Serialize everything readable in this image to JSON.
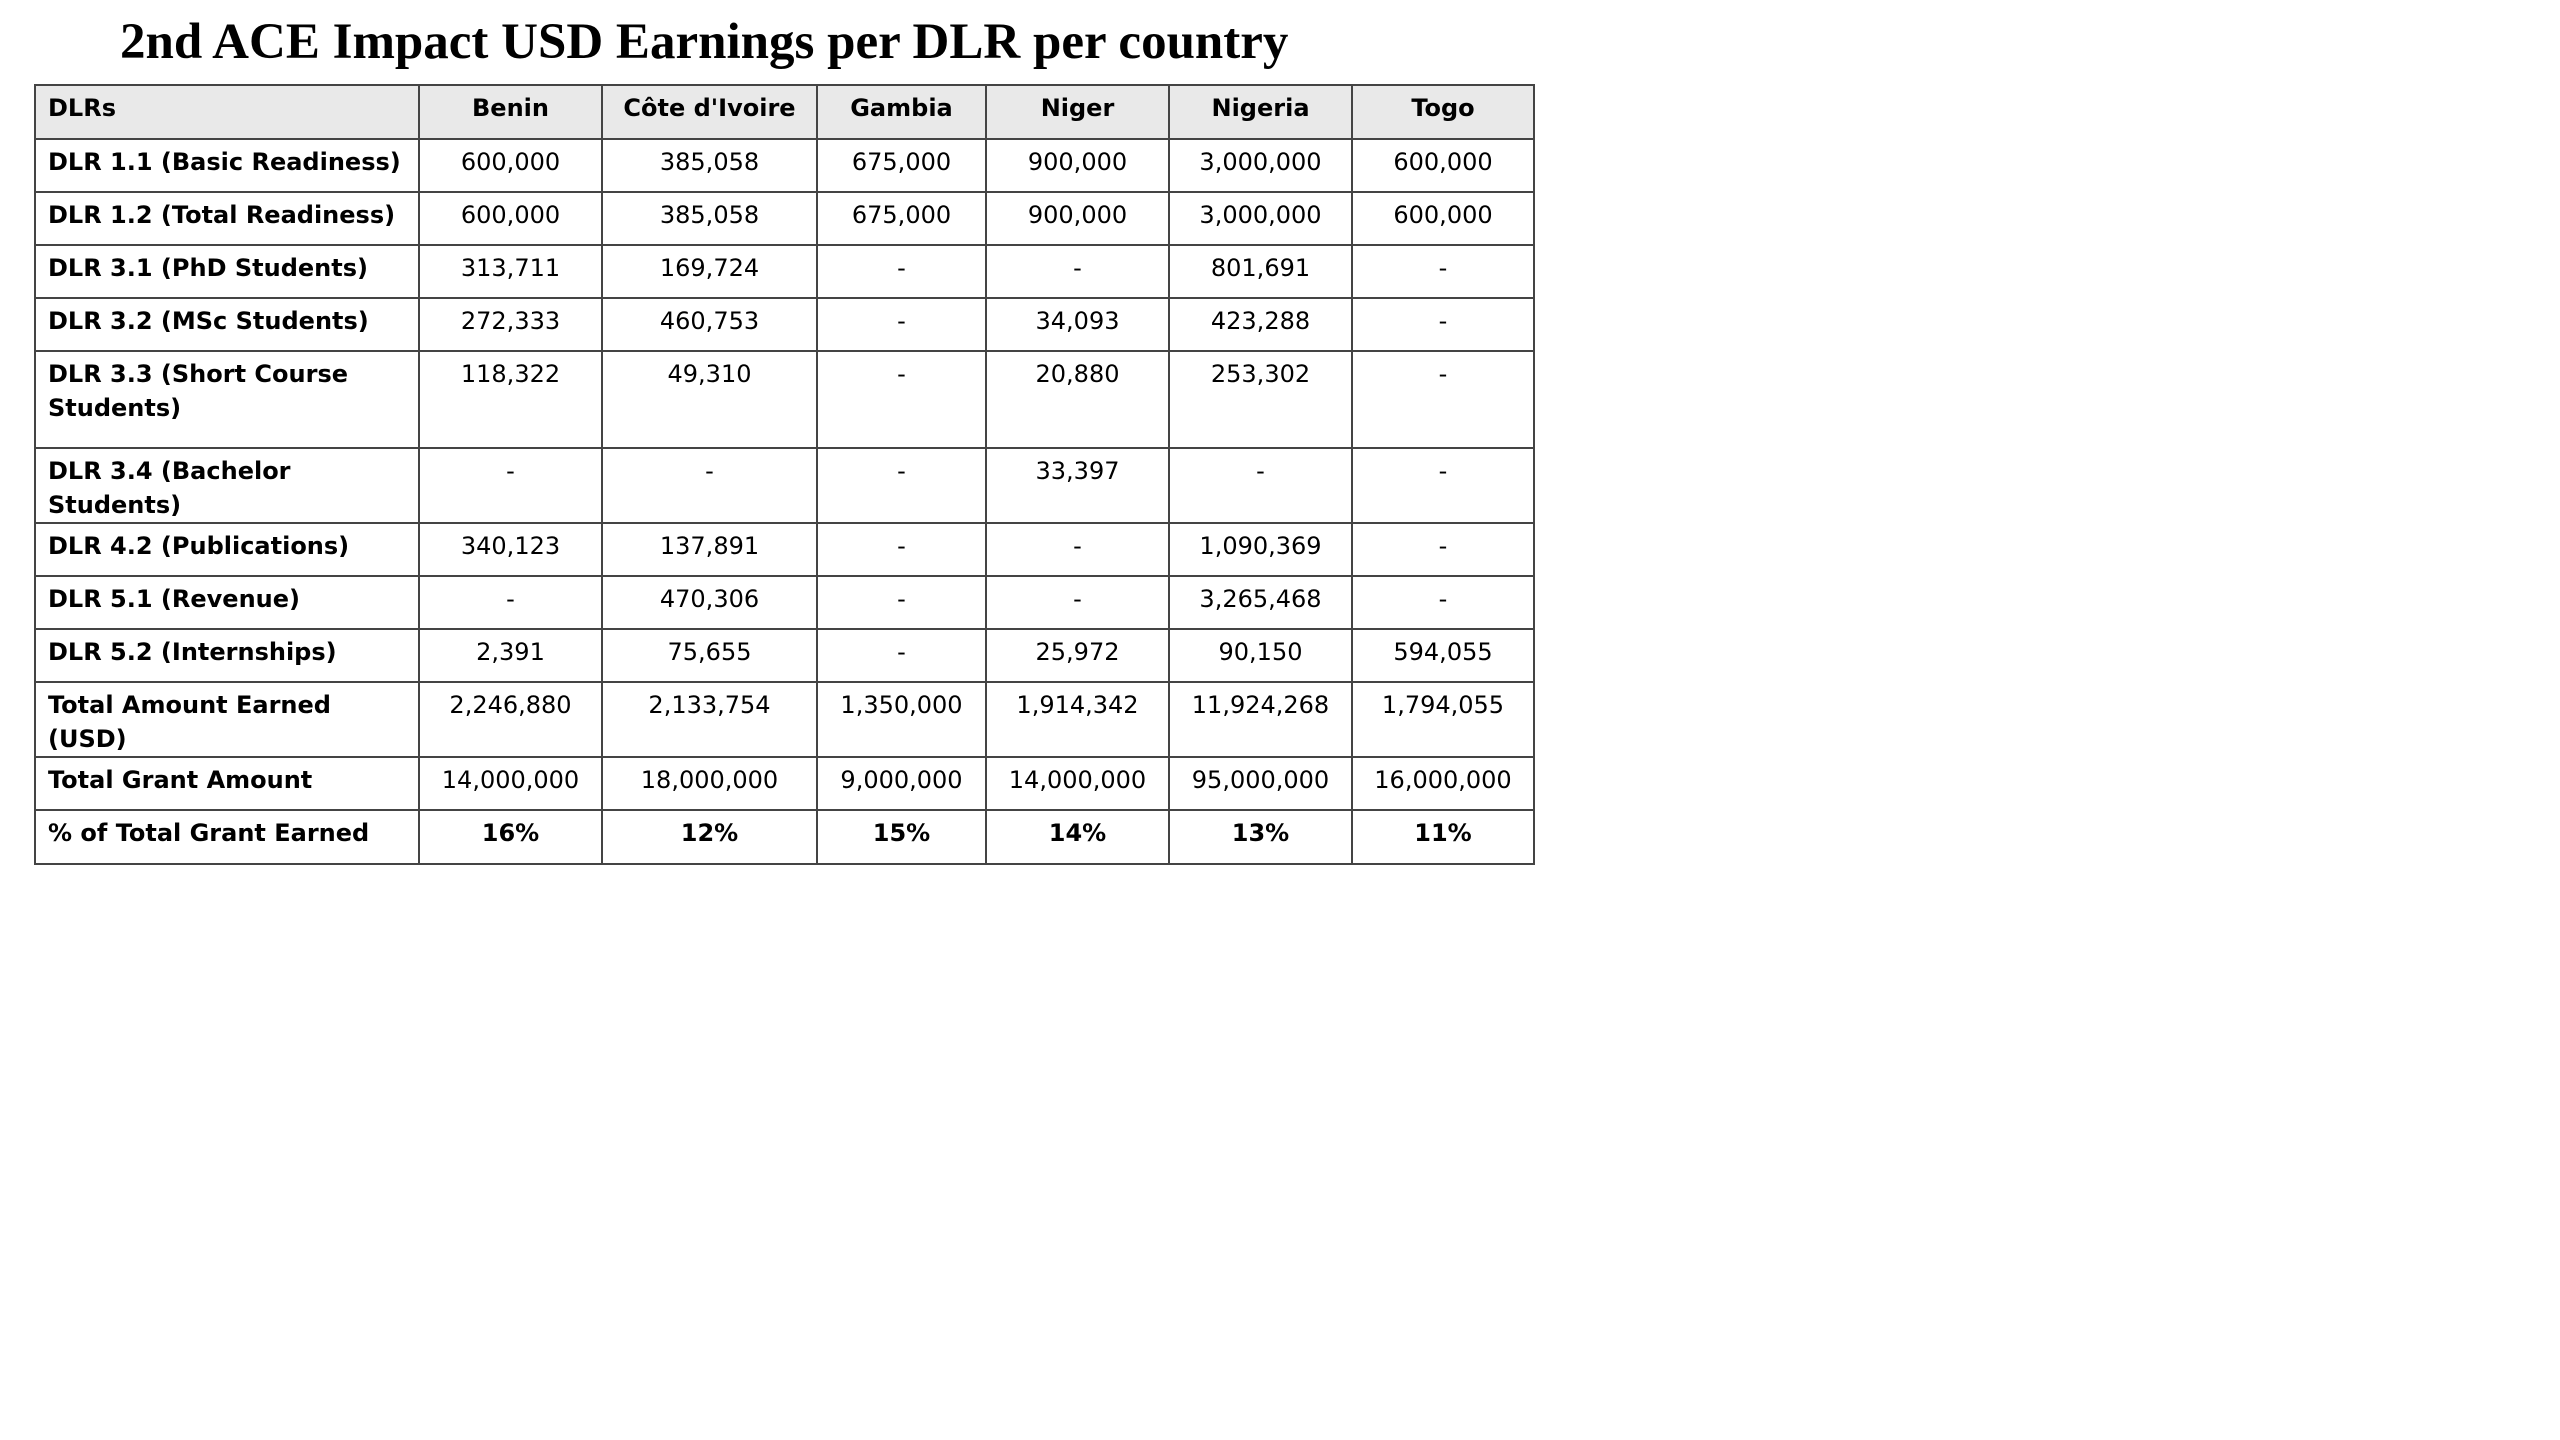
{
  "title": "2nd ACE Impact USD Earnings per DLR per country",
  "columns": [
    "DLRs",
    "Benin",
    "Côte d'Ivoire",
    "Gambia",
    "Niger",
    "Nigeria",
    "Togo"
  ],
  "rows": [
    {
      "label": "DLR 1.1 (Basic Readiness)",
      "values": [
        "600,000",
        "385,058",
        "675,000",
        "900,000",
        "3,000,000",
        "600,000"
      ]
    },
    {
      "label": "DLR 1.2 (Total Readiness)",
      "values": [
        "600,000",
        "385,058",
        "675,000",
        "900,000",
        "3,000,000",
        "600,000"
      ]
    },
    {
      "label": "DLR 3.1 (PhD Students)",
      "values": [
        "313,711",
        "169,724",
        "-",
        "-",
        "801,691",
        "-"
      ]
    },
    {
      "label": "DLR 3.2 (MSc Students)",
      "values": [
        "272,333",
        "460,753",
        "-",
        "34,093",
        "423,288",
        "-"
      ]
    },
    {
      "label": "DLR 3.3 (Short Course Students)",
      "values": [
        "118,322",
        "49,310",
        "-",
        "20,880",
        "253,302",
        "-"
      ]
    },
    {
      "label": "DLR 3.4 (Bachelor Students)",
      "values": [
        "-",
        "-",
        "-",
        "33,397",
        "-",
        "-"
      ]
    },
    {
      "label": "DLR 4.2 (Publications)",
      "values": [
        "340,123",
        "137,891",
        "-",
        "-",
        "1,090,369",
        "-"
      ]
    },
    {
      "label": "DLR 5.1 (Revenue)",
      "values": [
        "-",
        "470,306",
        "-",
        "-",
        "3,265,468",
        "-"
      ]
    },
    {
      "label": "DLR 5.2 (Internships)",
      "values": [
        "2,391",
        "75,655",
        "-",
        "25,972",
        "90,150",
        "594,055"
      ]
    },
    {
      "label": "Total Amount Earned (USD)",
      "values": [
        "2,246,880",
        "2,133,754",
        "1,350,000",
        "1,914,342",
        "11,924,268",
        "1,794,055"
      ]
    },
    {
      "label": "Total Grant Amount",
      "values": [
        "14,000,000",
        "18,000,000",
        "9,000,000",
        "14,000,000",
        "95,000,000",
        "16,000,000"
      ]
    },
    {
      "label": "% of Total Grant Earned",
      "values": [
        "16%",
        "12%",
        "15%",
        "14%",
        "13%",
        "11%"
      ]
    }
  ],
  "colors": {
    "header_background": "#e9e9e9",
    "border": "#444444",
    "text": "#000000"
  }
}
